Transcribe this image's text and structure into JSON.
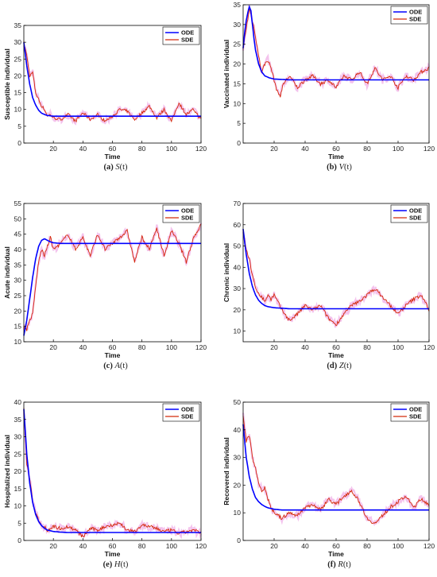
{
  "figure": {
    "panels": [
      {
        "tag": "(a)",
        "var": "S",
        "arg": "(t)"
      },
      {
        "tag": "(b)",
        "var": "V",
        "arg": "(t)"
      },
      {
        "tag": "(c)",
        "var": "A",
        "arg": "(t)"
      },
      {
        "tag": "(d)",
        "var": "Z",
        "arg": "(t)"
      },
      {
        "tag": "(e)",
        "var": "H",
        "arg": "(t)"
      },
      {
        "tag": "(f)",
        "var": "R",
        "arg": "(t)"
      }
    ]
  },
  "colors": {
    "ode": "#0000ff",
    "sde": "#d42a0a",
    "sde_band": "#f2b9ea"
  },
  "chart_data": [
    {
      "type": "line",
      "xlabel": "Time",
      "ylabel": "Susceptible individual",
      "xlim": [
        0,
        120
      ],
      "ylim": [
        0,
        35
      ],
      "xticks": [
        20,
        40,
        60,
        80,
        100,
        120
      ],
      "yticks": [
        0,
        5,
        10,
        15,
        20,
        25,
        30,
        35
      ],
      "grid": false,
      "legend": "top-right",
      "series": [
        {
          "name": "ODE",
          "x": [
            0,
            2,
            4,
            6,
            8,
            10,
            12,
            14,
            16,
            20,
            30,
            60,
            90,
            120
          ],
          "y": [
            30,
            23,
            17.5,
            13.5,
            11.3,
            9.8,
            8.9,
            8.5,
            8.2,
            8.0,
            8.0,
            8.0,
            8.0,
            8.0
          ]
        },
        {
          "name": "SDE",
          "x": [
            0,
            2,
            4,
            6,
            8,
            10,
            12,
            14,
            16,
            18,
            20,
            25,
            30,
            35,
            40,
            45,
            50,
            55,
            60,
            65,
            70,
            75,
            80,
            85,
            90,
            95,
            100,
            105,
            110,
            115,
            120
          ],
          "y": [
            30,
            26,
            20,
            21,
            15,
            13,
            11,
            10,
            8,
            8.5,
            7.5,
            7,
            8.5,
            6.5,
            9,
            7,
            8.5,
            6.5,
            8,
            10,
            9.5,
            7,
            9,
            11,
            7.5,
            10,
            6.5,
            12,
            8.5,
            10,
            7
          ]
        }
      ]
    },
    {
      "type": "line",
      "xlabel": "Time",
      "ylabel": "Vaccinated individual",
      "xlim": [
        0,
        120
      ],
      "ylim": [
        0,
        35
      ],
      "xticks": [
        20,
        40,
        60,
        80,
        100,
        120
      ],
      "yticks": [
        0,
        5,
        10,
        15,
        20,
        25,
        30,
        35
      ],
      "grid": false,
      "legend": "top-right",
      "series": [
        {
          "name": "ODE",
          "x": [
            0,
            1,
            2,
            3,
            4,
            5,
            6,
            7,
            8,
            10,
            12,
            14,
            17,
            20,
            30,
            60,
            90,
            120
          ],
          "y": [
            24,
            28,
            31,
            33,
            34.5,
            33.5,
            30,
            26.5,
            23.5,
            20,
            18,
            17,
            16.5,
            16.2,
            16,
            16,
            16,
            16
          ]
        },
        {
          "name": "SDE",
          "x": [
            0,
            2,
            4,
            6,
            8,
            10,
            12,
            14,
            16,
            18,
            20,
            22,
            24,
            26,
            30,
            35,
            40,
            45,
            50,
            55,
            60,
            65,
            70,
            75,
            80,
            85,
            90,
            95,
            100,
            105,
            110,
            115,
            120
          ],
          "y": [
            24,
            29,
            34,
            31,
            27,
            22,
            18,
            20,
            21,
            19,
            16,
            13,
            12,
            15,
            17,
            14,
            16,
            17,
            15,
            16,
            14,
            17,
            16,
            18,
            15,
            19,
            16,
            17,
            14,
            17,
            16,
            18,
            19
          ]
        }
      ]
    },
    {
      "type": "line",
      "xlabel": "Time",
      "ylabel": "Acute individual",
      "xlim": [
        0,
        120
      ],
      "ylim": [
        10,
        55
      ],
      "xticks": [
        20,
        40,
        60,
        80,
        100,
        120
      ],
      "yticks": [
        10,
        15,
        20,
        25,
        30,
        35,
        40,
        45,
        50,
        55
      ],
      "grid": false,
      "legend": "top-right",
      "series": [
        {
          "name": "ODE",
          "x": [
            0,
            2,
            4,
            6,
            8,
            10,
            12,
            14,
            16,
            18,
            20,
            25,
            30,
            60,
            90,
            120
          ],
          "y": [
            12,
            17,
            24,
            31,
            37,
            41,
            43,
            43.5,
            43,
            42.5,
            42.2,
            42,
            42,
            42,
            42,
            42
          ]
        },
        {
          "name": "SDE",
          "x": [
            0,
            2,
            4,
            6,
            8,
            10,
            12,
            14,
            16,
            18,
            20,
            25,
            30,
            35,
            40,
            45,
            50,
            55,
            60,
            65,
            70,
            75,
            80,
            85,
            90,
            95,
            100,
            105,
            110,
            115,
            120
          ],
          "y": [
            15,
            14,
            17,
            19,
            28,
            36,
            40,
            38,
            41,
            44,
            40,
            42,
            45,
            40,
            44,
            38,
            45,
            40,
            42,
            44,
            46,
            36,
            44,
            40,
            47,
            38,
            46,
            42,
            36,
            44,
            48
          ]
        }
      ]
    },
    {
      "type": "line",
      "xlabel": "Time",
      "ylabel": "Chronic individual",
      "xlim": [
        0,
        120
      ],
      "ylim": [
        5,
        70
      ],
      "xticks": [
        20,
        40,
        60,
        80,
        100,
        120
      ],
      "yticks": [
        10,
        20,
        30,
        40,
        50,
        60,
        70
      ],
      "grid": false,
      "legend": "top-right",
      "series": [
        {
          "name": "ODE",
          "x": [
            0,
            2,
            4,
            6,
            8,
            10,
            12,
            14,
            16,
            20,
            30,
            60,
            90,
            120
          ],
          "y": [
            58,
            46,
            37,
            31,
            27,
            24.5,
            23,
            22,
            21.5,
            21,
            20.5,
            20.5,
            20.5,
            20.5
          ]
        },
        {
          "name": "SDE",
          "x": [
            0,
            2,
            4,
            6,
            8,
            10,
            12,
            14,
            16,
            18,
            20,
            25,
            30,
            35,
            40,
            45,
            50,
            55,
            60,
            65,
            70,
            75,
            80,
            85,
            90,
            95,
            100,
            105,
            110,
            115,
            120
          ],
          "y": [
            58,
            48,
            44,
            36,
            30,
            28,
            26,
            24,
            27,
            25,
            27,
            20,
            15,
            18,
            22,
            20,
            22,
            16,
            13,
            18,
            22,
            24,
            27,
            30,
            26,
            22,
            18,
            22,
            25,
            27,
            20
          ]
        }
      ]
    },
    {
      "type": "line",
      "xlabel": "Time",
      "ylabel": "Hospitalized individual",
      "xlim": [
        0,
        120
      ],
      "ylim": [
        0,
        40
      ],
      "xticks": [
        20,
        40,
        60,
        80,
        100,
        120
      ],
      "yticks": [
        0,
        5,
        10,
        15,
        20,
        25,
        30,
        35,
        40
      ],
      "grid": false,
      "legend": "top-right",
      "series": [
        {
          "name": "ODE",
          "x": [
            0,
            2,
            4,
            6,
            8,
            10,
            12,
            14,
            16,
            20,
            25,
            30,
            60,
            90,
            120
          ],
          "y": [
            38,
            25,
            16.5,
            11,
            7.5,
            5.5,
            4.3,
            3.5,
            3,
            2.6,
            2.4,
            2.3,
            2.3,
            2.3,
            2.3
          ]
        },
        {
          "name": "SDE",
          "x": [
            0,
            2,
            4,
            6,
            8,
            10,
            12,
            14,
            16,
            18,
            20,
            25,
            30,
            35,
            40,
            45,
            50,
            55,
            60,
            65,
            70,
            75,
            80,
            85,
            90,
            95,
            100,
            105,
            110,
            115,
            120
          ],
          "y": [
            38,
            22,
            18,
            11,
            8,
            6,
            4.5,
            4,
            3,
            3.5,
            4,
            3.5,
            4,
            3,
            1,
            3.5,
            3,
            4,
            4.5,
            5,
            3,
            2.5,
            4.5,
            4,
            3.5,
            2.5,
            3,
            2,
            2.5,
            3,
            2
          ]
        }
      ]
    },
    {
      "type": "line",
      "xlabel": "Time",
      "ylabel": "Recovered individual",
      "xlim": [
        0,
        120
      ],
      "ylim": [
        0,
        50
      ],
      "xticks": [
        20,
        40,
        60,
        80,
        100,
        120
      ],
      "yticks": [
        0,
        10,
        20,
        30,
        40,
        50
      ],
      "grid": false,
      "legend": "top-right",
      "series": [
        {
          "name": "ODE",
          "x": [
            0,
            2,
            4,
            6,
            8,
            10,
            12,
            14,
            16,
            20,
            25,
            30,
            60,
            90,
            120
          ],
          "y": [
            42,
            30,
            23,
            18.5,
            15.5,
            14,
            13,
            12.3,
            11.8,
            11.3,
            11,
            11,
            11,
            11,
            11
          ]
        },
        {
          "name": "SDE",
          "x": [
            0,
            2,
            4,
            6,
            8,
            10,
            12,
            14,
            16,
            18,
            20,
            25,
            30,
            35,
            40,
            45,
            50,
            55,
            60,
            65,
            70,
            75,
            80,
            85,
            90,
            95,
            100,
            105,
            110,
            115,
            120
          ],
          "y": [
            45,
            36,
            38,
            30,
            26,
            21,
            18,
            19,
            15,
            12,
            10,
            8,
            10,
            9,
            12,
            13,
            11,
            15,
            13,
            16,
            18,
            14,
            8,
            6,
            9,
            12,
            14,
            16,
            12,
            15,
            13
          ]
        }
      ]
    }
  ]
}
